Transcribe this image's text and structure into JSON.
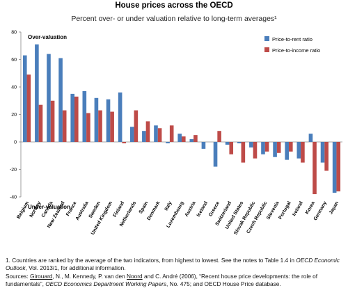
{
  "chart_data": {
    "type": "bar",
    "title": "House prices across the OECD",
    "subtitle": "Percent over- or under valuation relative to long-term averages¹",
    "ylim": [
      -40,
      80
    ],
    "yticks": [
      -40,
      -20,
      0,
      20,
      40,
      60,
      80
    ],
    "grid": false,
    "legend_position": "top-right",
    "annotations": {
      "over": "Over-valuation",
      "under": "Under-valuation"
    },
    "colors": {
      "Price-to-rent ratio": "#4a7ebb",
      "Price-to-income ratio": "#be4b48"
    },
    "categories": [
      "Belgium",
      "Norway",
      "Canada",
      "New Zealand",
      "France",
      "Australia",
      "Sweden",
      "United Kingdom",
      "Finland",
      "Netherlands",
      "Spain",
      "Denmark",
      "Italy",
      "Luxembourg",
      "Austria",
      "Iceland",
      "Greece",
      "Switzerland",
      "United States",
      "Slovak Republic",
      "Czech Republic",
      "Slovenia",
      "Portugal",
      "Ireland",
      "Korea",
      "Germany",
      "Japan"
    ],
    "series": [
      {
        "name": "Price-to-rent ratio",
        "values": [
          63,
          71,
          64,
          61,
          35,
          37,
          32,
          31,
          36,
          11,
          8,
          12,
          -1,
          6,
          2,
          -5,
          -18,
          -2,
          -1,
          -4,
          -9,
          -11,
          -13,
          -12,
          6,
          -15,
          -37
        ]
      },
      {
        "name": "Price-to-income ratio",
        "values": [
          49,
          27,
          30,
          23,
          33,
          21,
          23,
          22,
          -1,
          23,
          15,
          10,
          12,
          4,
          5,
          0,
          8,
          -9,
          -15,
          -12,
          -7,
          -8,
          -7,
          -15,
          -38,
          -21,
          -36
        ]
      }
    ]
  },
  "notes": {
    "footnote_a": "1. Countries are ranked by the average of the two indicators, from highest to lowest. See the notes to Table 1.4 in ",
    "footnote_b": "OECD Economic Outlook",
    "footnote_c": ", Vol. 2013/1, for additional information.",
    "src_a": "Sources: ",
    "src_b": "Girouard",
    "src_c": ", N., M. Kennedy, P. van den ",
    "src_d": "Noord",
    "src_e": " and C. André (2006), “Recent house price developments: the role of fundamentals”, ",
    "src_f": "OECD Economics Department Working Papers",
    "src_g": ", No. 475; and OECD House Price database."
  }
}
